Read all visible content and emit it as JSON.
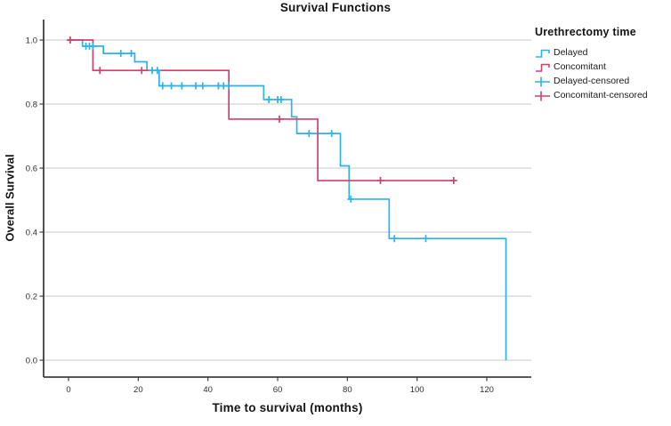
{
  "chart_data": {
    "type": "line",
    "subtype": "kaplan-meier-step",
    "title": "Survival Functions",
    "xlabel": "Time to survival (months)",
    "ylabel": "Overall Survival",
    "xlim": [
      -7,
      133
    ],
    "ylim": [
      0.0,
      1.0
    ],
    "xticks": [
      0,
      20,
      40,
      60,
      80,
      100,
      120
    ],
    "yticks": [
      {
        "value": 1.0,
        "label": "1.0"
      },
      {
        "value": 0.8,
        "label": "0.8"
      },
      {
        "value": 0.6,
        "label": "0.6"
      },
      {
        "value": 0.4,
        "label": "0.4"
      },
      {
        "value": 0.2,
        "label": "0.2"
      },
      {
        "value": 0.0,
        "label": "0.0"
      }
    ],
    "grid": "horizontal",
    "colors": {
      "delayed": "#2db3ea",
      "concomitant": "#d34169",
      "grid": "#c9c9c9",
      "axis": "#3f3f3f",
      "tick_text": "#2e2e2e"
    },
    "legend": {
      "title": "Urethrectomy time",
      "position": "right",
      "entries": [
        {
          "label": "Delayed",
          "color": "#2db3ea",
          "glyph": "step-line"
        },
        {
          "label": "Concomitant",
          "color": "#d34169",
          "glyph": "step-line"
        },
        {
          "label": "Delayed-censored",
          "color": "#2db3ea",
          "glyph": "plus-line"
        },
        {
          "label": "Concomitant-censored",
          "color": "#d34169",
          "glyph": "plus-line"
        }
      ]
    },
    "series": [
      {
        "name": "Delayed",
        "color": "#2db3ea",
        "steps": [
          [
            0,
            1.0
          ],
          [
            4,
            0.981
          ],
          [
            10,
            0.958
          ],
          [
            19,
            0.932
          ],
          [
            22.5,
            0.905
          ],
          [
            26,
            0.857
          ],
          [
            56,
            0.814
          ],
          [
            64,
            0.76
          ],
          [
            65.5,
            0.708
          ],
          [
            78,
            0.607
          ],
          [
            80.5,
            0.503
          ],
          [
            92,
            0.38
          ],
          [
            125.5,
            0.0
          ]
        ],
        "end_time": 125.5,
        "censored": [
          [
            5,
            0.981
          ],
          [
            6,
            0.981
          ],
          [
            7,
            0.981
          ],
          [
            15,
            0.958
          ],
          [
            18,
            0.958
          ],
          [
            24,
            0.905
          ],
          [
            25.5,
            0.905
          ],
          [
            27,
            0.857
          ],
          [
            29.5,
            0.857
          ],
          [
            32.5,
            0.857
          ],
          [
            36.5,
            0.857
          ],
          [
            38.5,
            0.857
          ],
          [
            43,
            0.857
          ],
          [
            44.5,
            0.857
          ],
          [
            46,
            0.857
          ],
          [
            57.5,
            0.814
          ],
          [
            60,
            0.814
          ],
          [
            61,
            0.814
          ],
          [
            69,
            0.708
          ],
          [
            75.5,
            0.708
          ],
          [
            81,
            0.503
          ],
          [
            93.5,
            0.38
          ],
          [
            102.5,
            0.38
          ]
        ]
      },
      {
        "name": "Concomitant",
        "color": "#d34169",
        "steps": [
          [
            0,
            1.0
          ],
          [
            7,
            0.905
          ],
          [
            46,
            0.753
          ],
          [
            71.5,
            0.561
          ]
        ],
        "end_time": 110.5,
        "censored": [
          [
            0.5,
            1.0
          ],
          [
            9,
            0.905
          ],
          [
            21,
            0.905
          ],
          [
            60.5,
            0.753
          ],
          [
            89.5,
            0.561
          ],
          [
            110.5,
            0.561
          ]
        ]
      }
    ]
  }
}
